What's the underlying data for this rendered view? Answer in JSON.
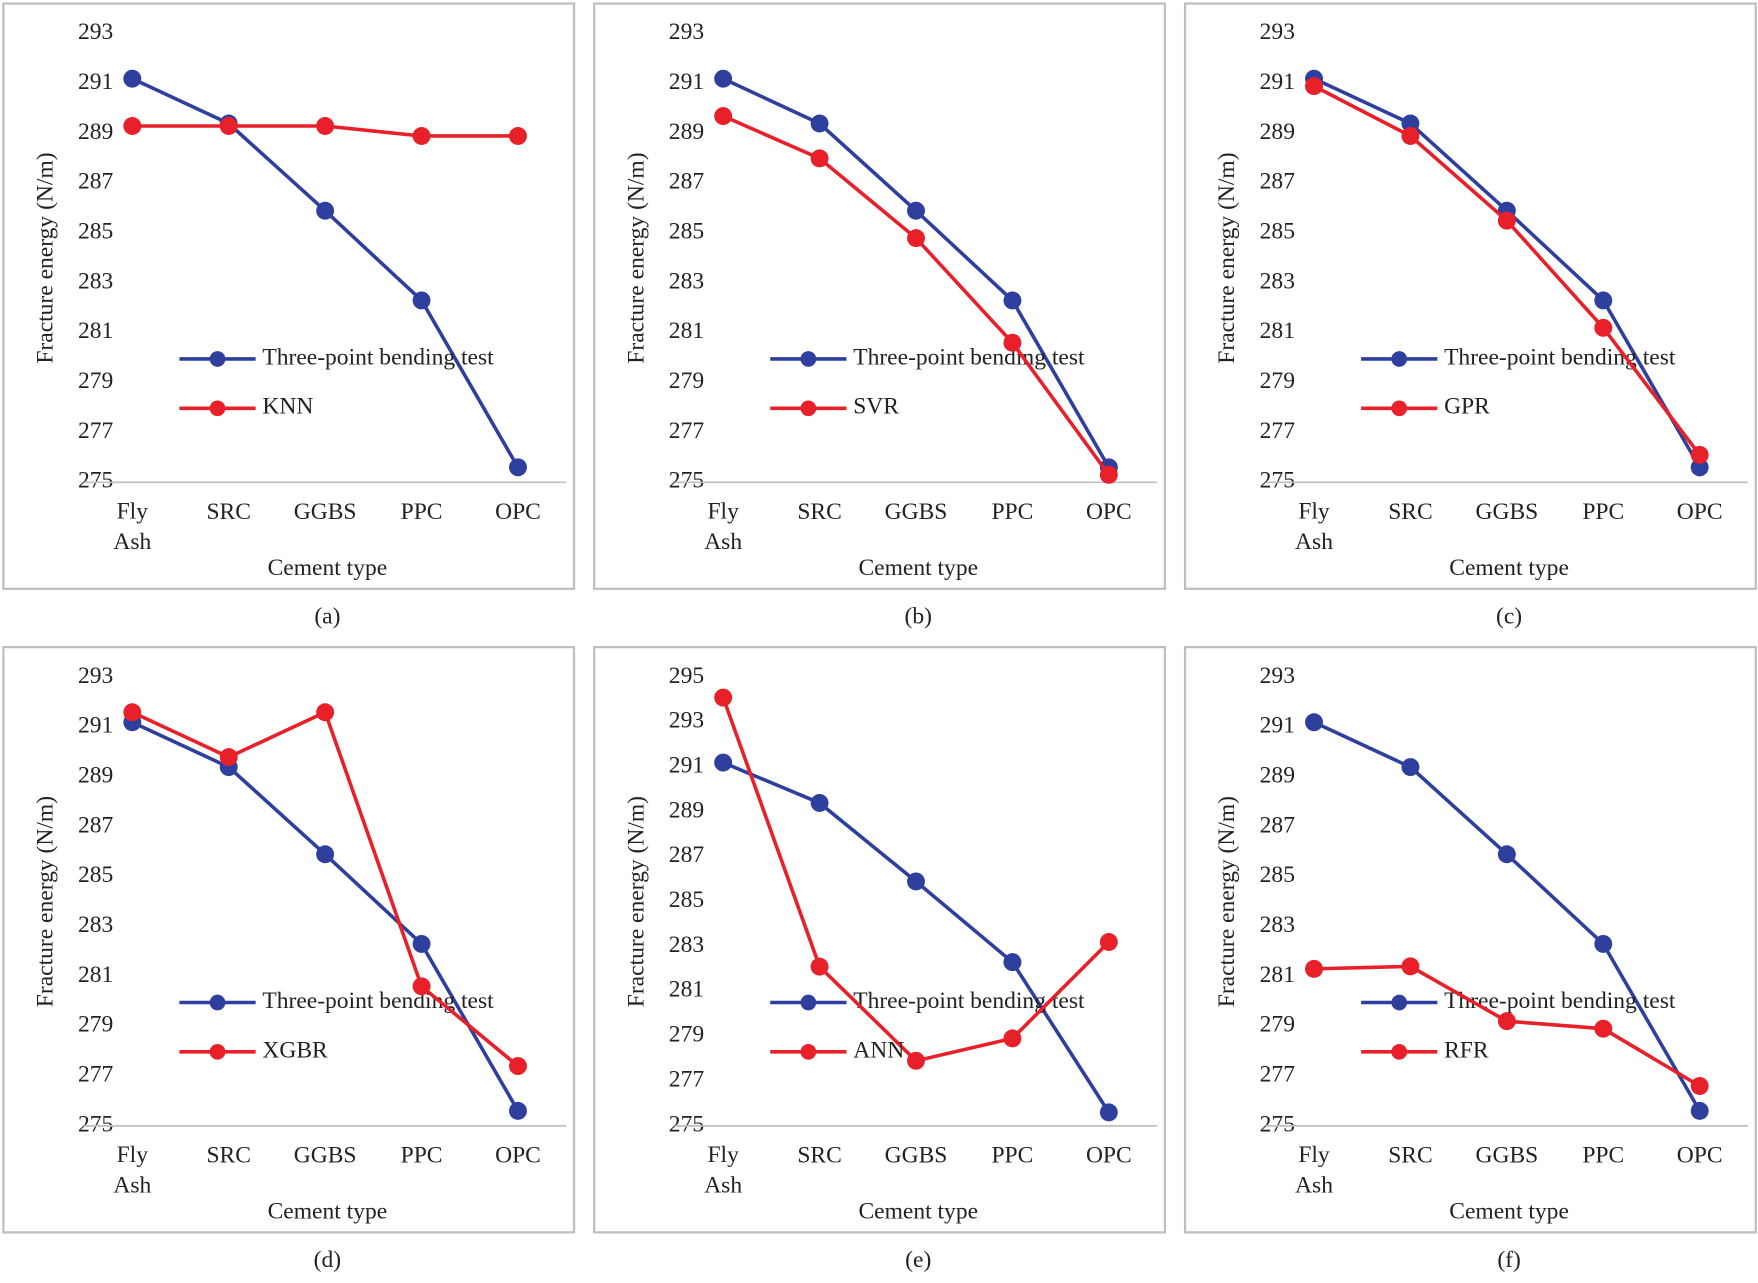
{
  "chart_data": [
    {
      "type": "line",
      "label": "(a)",
      "xlabel": "Cement type",
      "ylabel": "Fracture energy (N/m)",
      "categories": [
        "Fly Ash",
        "SRC",
        "GGBS",
        "PPC",
        "OPC"
      ],
      "series": [
        {
          "name": "Three-point bending test",
          "color": "#2e3f9e",
          "values": [
            291.2,
            289.4,
            285.9,
            282.3,
            275.6
          ]
        },
        {
          "name": "KNN",
          "color": "#e8202a",
          "values": [
            289.3,
            289.3,
            289.3,
            288.9,
            288.9
          ]
        }
      ],
      "ylim": [
        275,
        293
      ],
      "yticks": [
        275,
        277,
        279,
        281,
        283,
        285,
        287,
        289,
        291,
        293
      ],
      "grid": false,
      "legend": "left"
    },
    {
      "type": "line",
      "label": "(b)",
      "xlabel": "Cement type",
      "ylabel": "Fracture energy (N/m)",
      "categories": [
        "Fly Ash",
        "SRC",
        "GGBS",
        "PPC",
        "OPC"
      ],
      "series": [
        {
          "name": "Three-point bending test",
          "color": "#2e3f9e",
          "values": [
            291.2,
            289.4,
            285.9,
            282.3,
            275.6
          ]
        },
        {
          "name": "SVR",
          "color": "#e8202a",
          "values": [
            289.7,
            288.0,
            284.8,
            280.6,
            275.3
          ]
        }
      ],
      "ylim": [
        275,
        293
      ],
      "yticks": [
        275,
        277,
        279,
        281,
        283,
        285,
        287,
        289,
        291,
        293
      ],
      "grid": false,
      "legend": "left"
    },
    {
      "type": "line",
      "label": "(c)",
      "xlabel": "Cement type",
      "ylabel": "Fracture energy (N/m)",
      "categories": [
        "Fly Ash",
        "SRC",
        "GGBS",
        "PPC",
        "OPC"
      ],
      "series": [
        {
          "name": "Three-point bending test",
          "color": "#2e3f9e",
          "values": [
            291.2,
            289.4,
            285.9,
            282.3,
            275.6
          ]
        },
        {
          "name": "GPR",
          "color": "#e8202a",
          "values": [
            290.9,
            288.9,
            285.5,
            281.2,
            276.1
          ]
        }
      ],
      "ylim": [
        275,
        293
      ],
      "yticks": [
        275,
        277,
        279,
        281,
        283,
        285,
        287,
        289,
        291,
        293
      ],
      "grid": false,
      "legend": "left"
    },
    {
      "type": "line",
      "label": "(d)",
      "xlabel": "Cement type",
      "ylabel": "Fracture energy (N/m)",
      "categories": [
        "Fly Ash",
        "SRC",
        "GGBS",
        "PPC",
        "OPC"
      ],
      "series": [
        {
          "name": "Three-point bending test",
          "color": "#2e3f9e",
          "values": [
            291.2,
            289.4,
            285.9,
            282.3,
            275.6
          ]
        },
        {
          "name": "XGBR",
          "color": "#e8202a",
          "values": [
            291.6,
            289.8,
            291.6,
            280.6,
            277.4
          ]
        }
      ],
      "ylim": [
        275,
        293
      ],
      "yticks": [
        275,
        277,
        279,
        281,
        283,
        285,
        287,
        289,
        291,
        293
      ],
      "grid": false,
      "legend": "left"
    },
    {
      "type": "line",
      "label": "(e)",
      "xlabel": "Cement type",
      "ylabel": "Fracture energy (N/m)",
      "categories": [
        "Fly Ash",
        "SRC",
        "GGBS",
        "PPC",
        "OPC"
      ],
      "series": [
        {
          "name": "Three-point bending test",
          "color": "#2e3f9e",
          "values": [
            291.2,
            289.4,
            285.9,
            282.3,
            275.6
          ]
        },
        {
          "name": "ANN",
          "color": "#e8202a",
          "values": [
            294.1,
            282.1,
            277.9,
            278.9,
            283.2
          ]
        }
      ],
      "ylim": [
        275,
        295
      ],
      "yticks": [
        275,
        277,
        279,
        281,
        283,
        285,
        287,
        289,
        291,
        293,
        295
      ],
      "grid": false,
      "legend": "left"
    },
    {
      "type": "line",
      "label": "(f)",
      "xlabel": "Cement type",
      "ylabel": "Fracture energy (N/m)",
      "categories": [
        "Fly Ash",
        "SRC",
        "GGBS",
        "PPC",
        "OPC"
      ],
      "series": [
        {
          "name": "Three-point bending test",
          "color": "#2e3f9e",
          "values": [
            291.2,
            289.4,
            285.9,
            282.3,
            275.6
          ]
        },
        {
          "name": "RFR",
          "color": "#e8202a",
          "values": [
            281.3,
            281.4,
            279.2,
            278.9,
            276.6
          ]
        }
      ],
      "ylim": [
        275,
        293
      ],
      "yticks": [
        275,
        277,
        279,
        281,
        283,
        285,
        287,
        289,
        291,
        293
      ],
      "grid": false,
      "legend": "left"
    }
  ]
}
